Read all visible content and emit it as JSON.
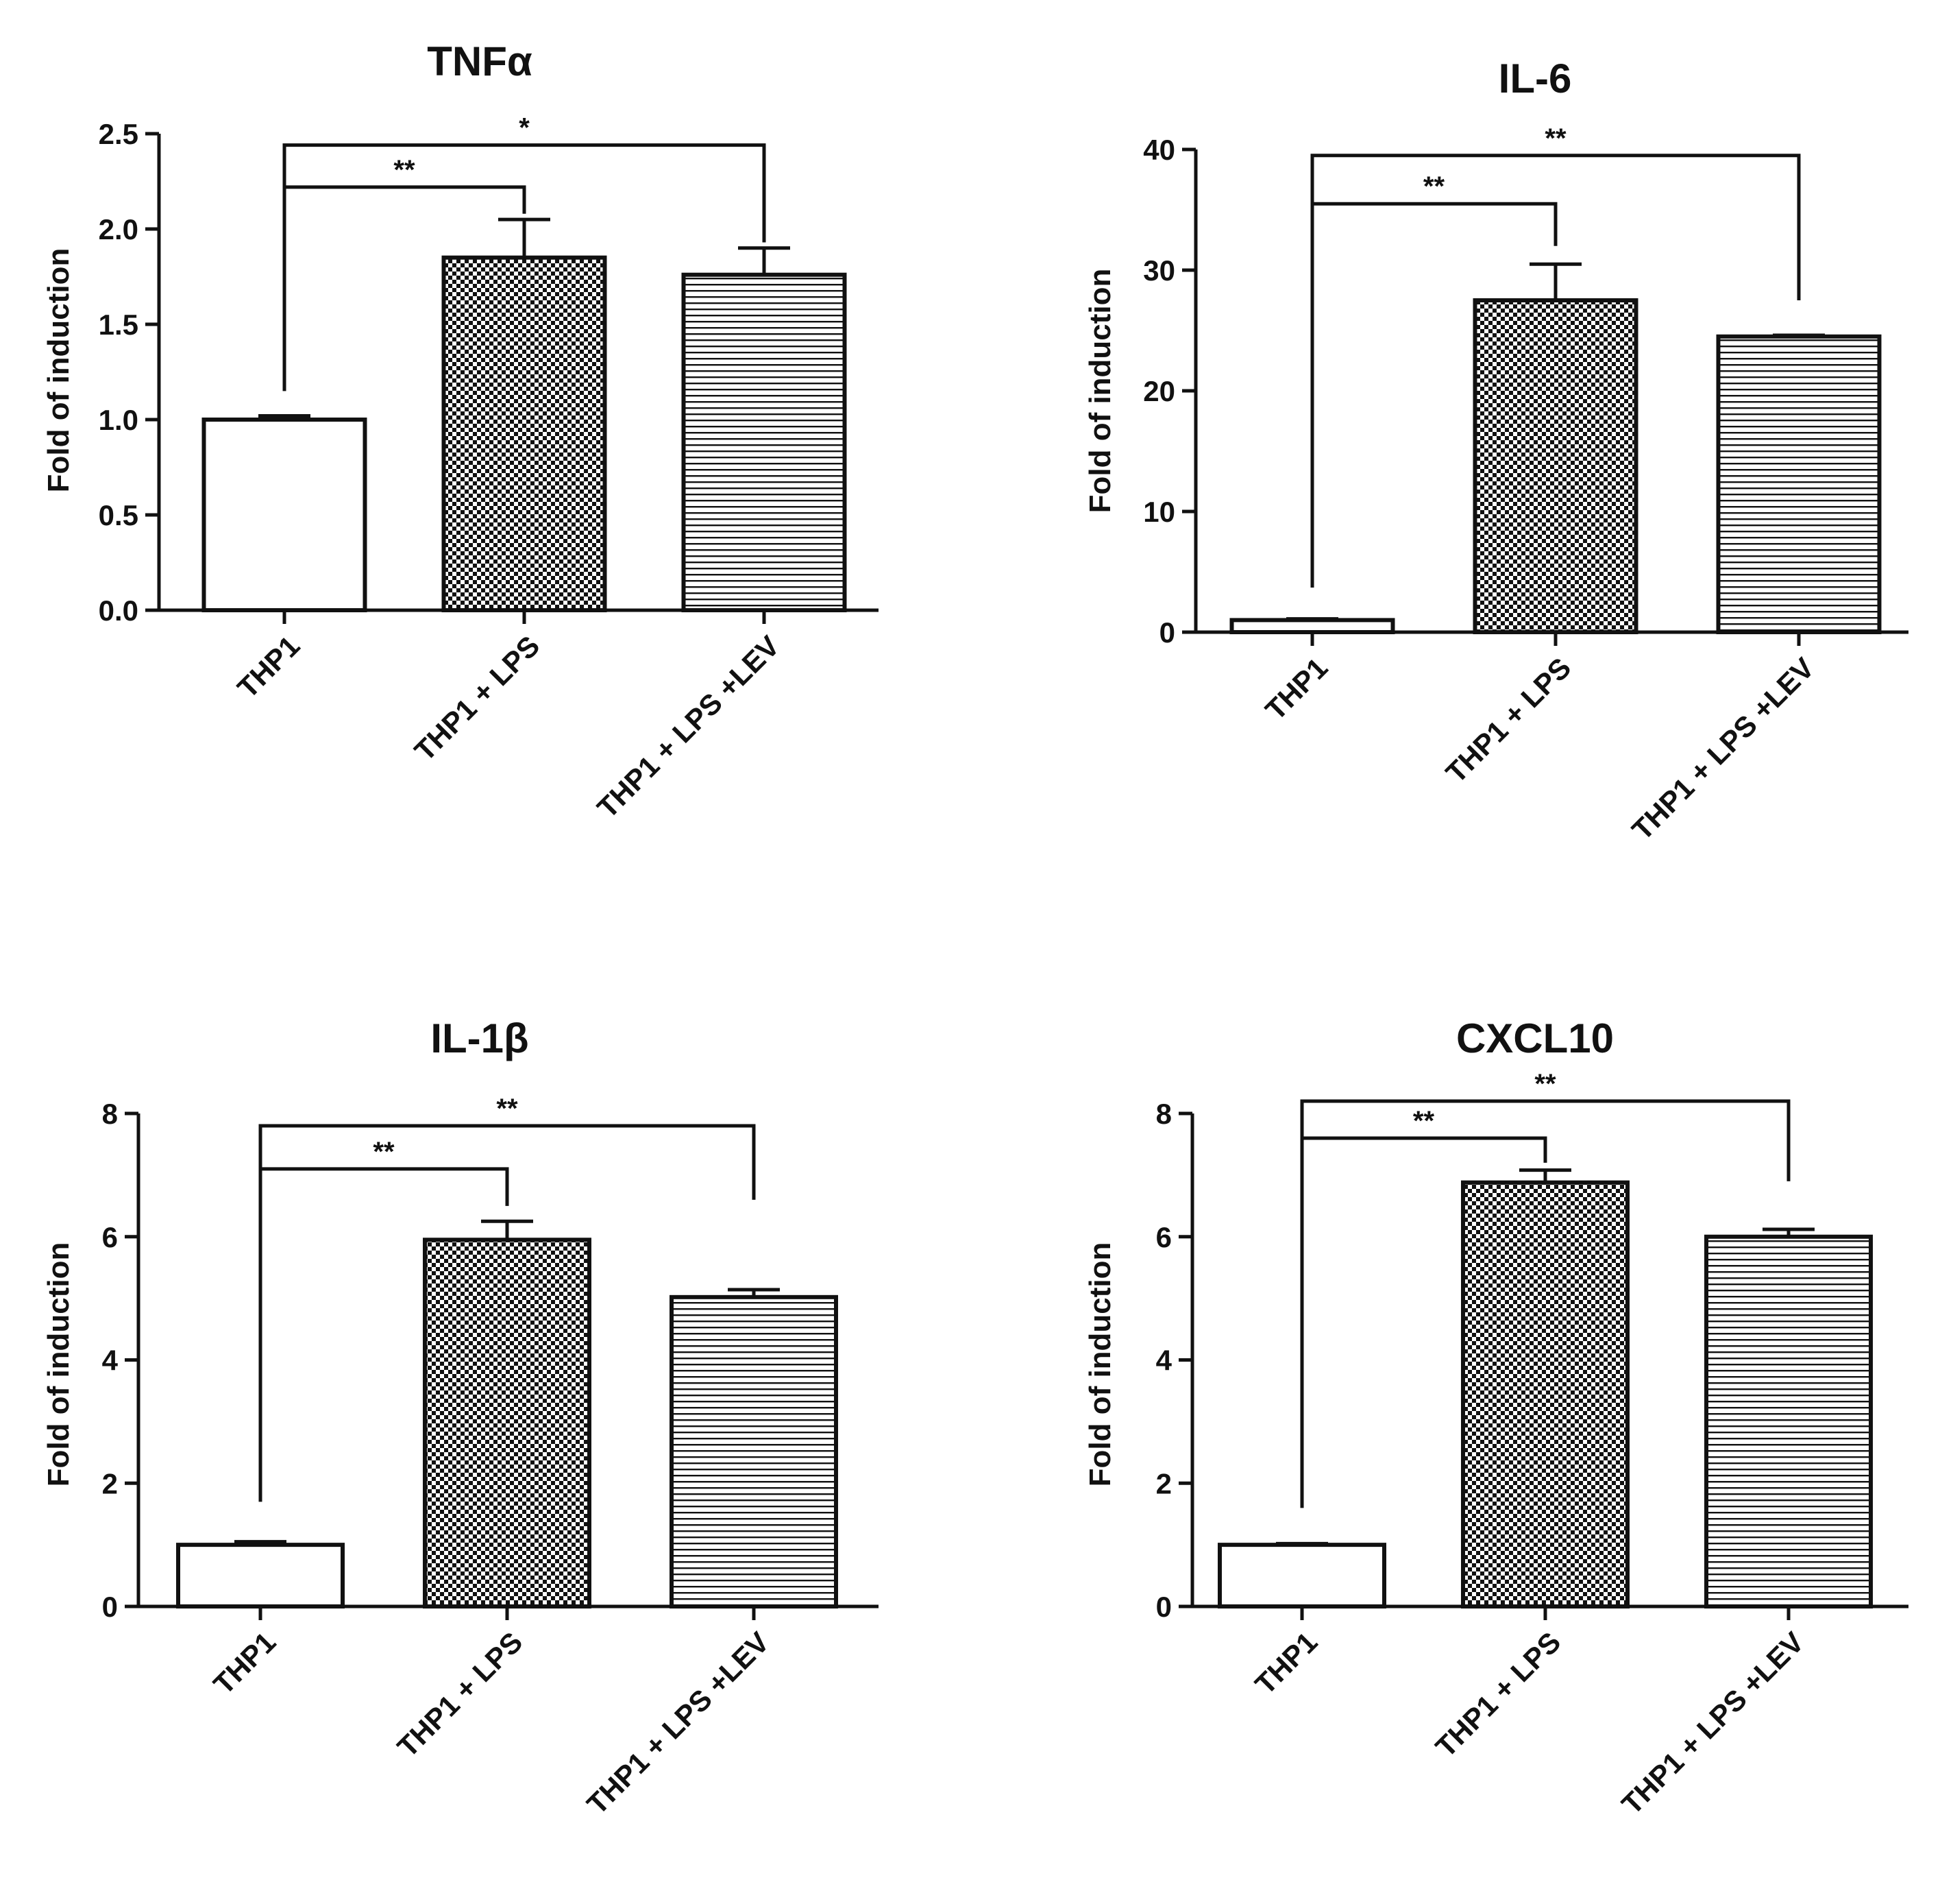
{
  "figure": {
    "description_colors": {
      "ink": "#111111",
      "background": "#ffffff"
    }
  },
  "chart_data": [
    {
      "type": "bar",
      "title": "TNFα",
      "xlabel": "",
      "ylabel": "Fold of induction",
      "ylim": [
        0,
        2.5
      ],
      "yticks": [
        "0.0",
        "0.5",
        "1.0",
        "1.5",
        "2.0",
        "2.5"
      ],
      "ytick_values": [
        0,
        0.5,
        1.0,
        1.5,
        2.0,
        2.5
      ],
      "categories": [
        "THP1",
        "THP1 + LPS",
        "THP1 + LPS +LEV"
      ],
      "patterns": [
        "none",
        "checker",
        "stripes"
      ],
      "values": [
        1.0,
        1.85,
        1.76
      ],
      "errors": [
        0.02,
        0.2,
        0.14
      ],
      "significance": [
        {
          "from": 0,
          "to": 1,
          "label": "**",
          "y": 2.22,
          "left_end": 1.15,
          "right_end": 2.08
        },
        {
          "from": 0,
          "to": 2,
          "label": "*",
          "y": 2.44,
          "left_end": 1.15,
          "right_end": 1.93
        }
      ]
    },
    {
      "type": "bar",
      "title": "IL-6",
      "xlabel": "",
      "ylabel": "Fold of induction",
      "ylim": [
        0,
        40
      ],
      "yticks": [
        "0",
        "10",
        "20",
        "30",
        "40"
      ],
      "ytick_values": [
        0,
        10,
        20,
        30,
        40
      ],
      "categories": [
        "THP1",
        "THP1 + LPS",
        "THP1 + LPS +LEV"
      ],
      "patterns": [
        "none",
        "checker",
        "stripes"
      ],
      "values": [
        1.0,
        27.5,
        24.5
      ],
      "errors": [
        0.1,
        3.0,
        0.1
      ],
      "significance": [
        {
          "from": 0,
          "to": 1,
          "label": "**",
          "y": 35.5,
          "left_end": 3.7,
          "right_end": 32.0
        },
        {
          "from": 0,
          "to": 2,
          "label": "**",
          "y": 39.5,
          "left_end": 3.7,
          "right_end": 27.5
        }
      ]
    },
    {
      "type": "bar",
      "title": "IL-1β",
      "xlabel": "",
      "ylabel": "Fold of induction",
      "ylim": [
        0,
        8
      ],
      "yticks": [
        "0",
        "2",
        "4",
        "6",
        "8"
      ],
      "ytick_values": [
        0,
        2,
        4,
        6,
        8
      ],
      "categories": [
        "THP1",
        "THP1 + LPS",
        "THP1 + LPS +LEV"
      ],
      "patterns": [
        "none",
        "checker",
        "stripes"
      ],
      "values": [
        1.0,
        5.95,
        5.02
      ],
      "errors": [
        0.05,
        0.3,
        0.12
      ],
      "significance": [
        {
          "from": 0,
          "to": 1,
          "label": "**",
          "y": 7.1,
          "left_end": 1.7,
          "right_end": 6.5
        },
        {
          "from": 0,
          "to": 2,
          "label": "**",
          "y": 7.8,
          "left_end": 1.7,
          "right_end": 6.6
        }
      ]
    },
    {
      "type": "bar",
      "title": "CXCL10",
      "xlabel": "",
      "ylabel": "Fold of induction",
      "ylim": [
        0,
        8
      ],
      "yticks": [
        "0",
        "2",
        "4",
        "6",
        "8"
      ],
      "ytick_values": [
        0,
        2,
        4,
        6,
        8
      ],
      "categories": [
        "THP1",
        "THP1 + LPS",
        "THP1 + LPS +LEV"
      ],
      "patterns": [
        "none",
        "checker",
        "stripes"
      ],
      "values": [
        1.0,
        6.88,
        6.0
      ],
      "errors": [
        0.02,
        0.2,
        0.12
      ],
      "significance": [
        {
          "from": 0,
          "to": 1,
          "label": "**",
          "y": 7.6,
          "left_end": 1.6,
          "right_end": 7.2
        },
        {
          "from": 0,
          "to": 2,
          "label": "**",
          "y": 8.2,
          "left_end": 1.6,
          "right_end": 6.9
        }
      ]
    }
  ]
}
